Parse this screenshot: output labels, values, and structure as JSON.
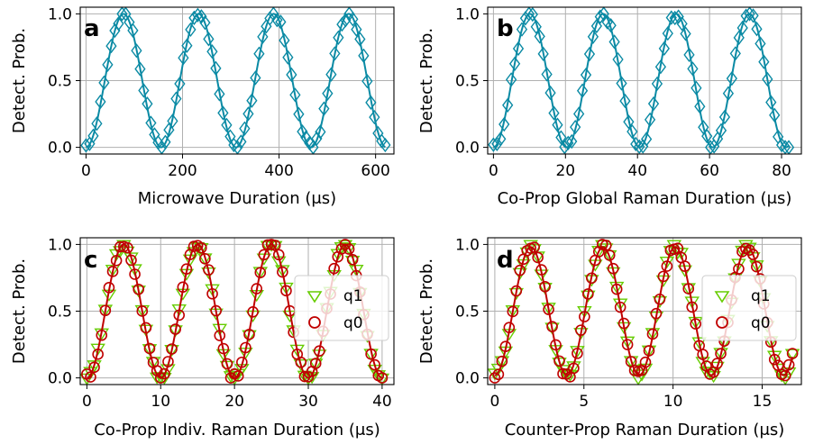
{
  "figure": {
    "ylabel": "Detect. Prob."
  },
  "chart_data": [
    {
      "type": "scatter",
      "panel_label": "a",
      "xlabel": "Microwave Duration (μs)",
      "xlim": [
        -12,
        638
      ],
      "ylim": [
        -0.05,
        1.05
      ],
      "xticks": [
        0,
        200,
        400,
        600
      ],
      "yticks": [
        0,
        0.5,
        1.0
      ],
      "ytick_labels": [
        "0.0",
        "0.5",
        "1.0"
      ],
      "grid": true,
      "fit_model": {
        "amplitude": 0.5,
        "offset": 0.5,
        "period": 155.5,
        "phase": 0,
        "x_range": [
          0,
          620
        ]
      },
      "series": [
        {
          "marker": "diamond",
          "color": "#0a8aa4",
          "x_range": [
            0,
            620
          ],
          "n_points": 84
        }
      ],
      "fit_color": "#0a8aa4"
    },
    {
      "type": "scatter",
      "panel_label": "b",
      "xlabel": "Co-Prop Global Raman Duration (μs)",
      "xlim": [
        -1.6,
        85.5
      ],
      "ylim": [
        -0.05,
        1.05
      ],
      "xticks": [
        0,
        20,
        40,
        60,
        80
      ],
      "yticks": [
        0,
        0.5,
        1.0
      ],
      "ytick_labels": [
        "0.0",
        "0.5",
        "1.0"
      ],
      "grid": true,
      "fit_model": {
        "amplitude": 0.5,
        "offset": 0.5,
        "period": 20.3,
        "phase": 0,
        "x_range": [
          0,
          82
        ]
      },
      "series": [
        {
          "marker": "diamond",
          "color": "#0a8aa4",
          "x_range": [
            0,
            82
          ],
          "n_points": 84
        }
      ],
      "fit_color": "#0a8aa4"
    },
    {
      "type": "scatter",
      "panel_label": "c",
      "xlabel": "Co-Prop Indiv. Raman Duration (μs)",
      "xlim": [
        -0.9,
        41.6
      ],
      "ylim": [
        -0.05,
        1.05
      ],
      "xticks": [
        0,
        10,
        20,
        30,
        40
      ],
      "yticks": [
        0,
        0.5,
        1.0
      ],
      "ytick_labels": [
        "0.0",
        "0.5",
        "1.0"
      ],
      "grid": true,
      "legend": "right",
      "fit_model": {
        "amplitude": 0.5,
        "offset": 0.5,
        "period": 10.0,
        "phase": 0,
        "x_range": [
          0,
          40
        ]
      },
      "series": [
        {
          "name": "q1",
          "marker": "triangle-down",
          "color": "#66cc00",
          "x_range": [
            0,
            40
          ],
          "n_points": 81
        },
        {
          "name": "q0",
          "marker": "circle",
          "color": "#c00000",
          "x_range": [
            0,
            40
          ],
          "n_points": 81
        }
      ],
      "fit_color": "#c00000"
    },
    {
      "type": "scatter",
      "panel_label": "d",
      "xlabel": "Counter-Prop Raman Duration (μs)",
      "xlim": [
        -0.4,
        17.2
      ],
      "ylim": [
        -0.05,
        1.05
      ],
      "xticks": [
        0,
        5,
        10,
        15
      ],
      "yticks": [
        0,
        0.5,
        1.0
      ],
      "ytick_labels": [
        "0.0",
        "0.5",
        "1.0"
      ],
      "grid": true,
      "legend": "right",
      "fit_model": {
        "amplitude": 0.48,
        "offset": 0.5,
        "period": 4.05,
        "phase": 0,
        "x_range": [
          0,
          16.7
        ]
      },
      "series": [
        {
          "name": "q1",
          "marker": "triangle-down",
          "color": "#66cc00",
          "x_range": [
            0,
            16.7
          ],
          "n_points": 84
        },
        {
          "name": "q0",
          "marker": "circle",
          "color": "#c00000",
          "x_range": [
            0,
            16.7
          ],
          "n_points": 84
        }
      ],
      "fit_color": "#c00000"
    }
  ]
}
